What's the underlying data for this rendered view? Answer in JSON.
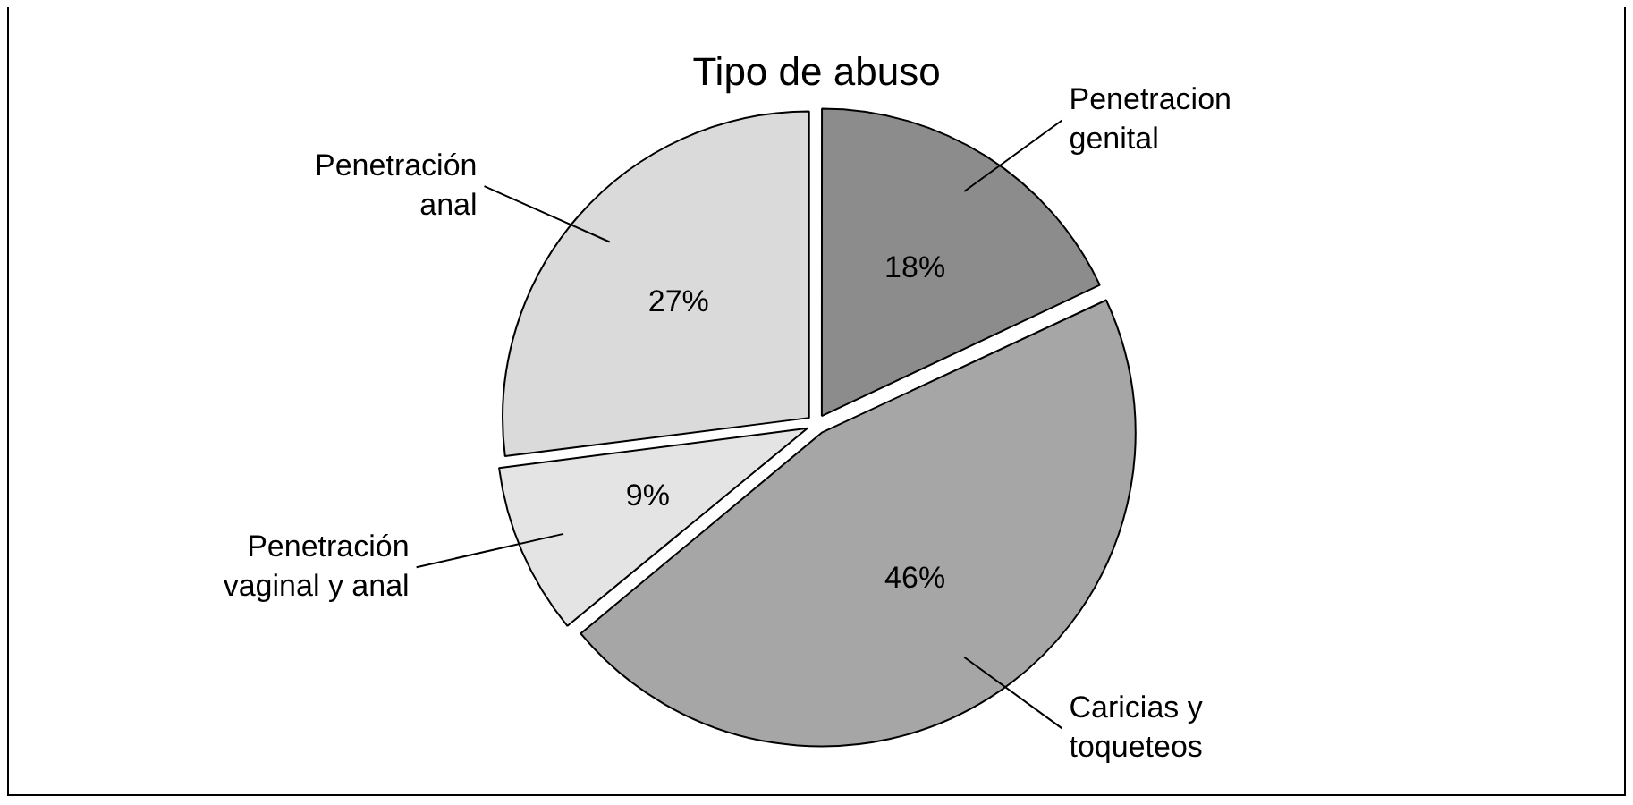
{
  "chart_data": {
    "type": "pie",
    "title": "Tipo de abuso",
    "categories": [
      "Penetracion\ngenital",
      "Caricias y\ntoqueteos",
      "Penetración\nvaginal y anal",
      "Penetración\nanal"
    ],
    "values": [
      18,
      46,
      9,
      27
    ],
    "value_labels": [
      "18%",
      "46%",
      "9%",
      "27%"
    ],
    "colors": [
      "#8c8c8c",
      "#a6a6a6",
      "#e4e4e4",
      "#dadada"
    ],
    "legend": false
  }
}
